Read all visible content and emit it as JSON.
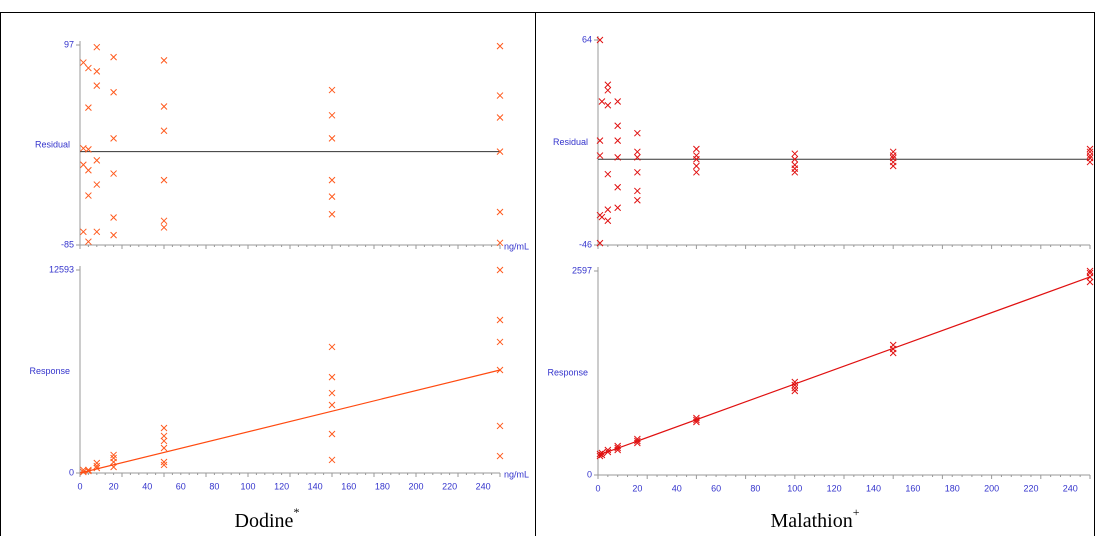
{
  "chart_data": [
    {
      "type": "scatter",
      "ylabel": "Residual",
      "xlabel": "ng/mL",
      "xlim": [
        0,
        250
      ],
      "ylim": [
        -85,
        97
      ],
      "yticks": [
        -85,
        97
      ],
      "hline": 0,
      "series": [
        {
          "color": "#ff5a1e",
          "style": "marker",
          "x": [
            2,
            2,
            2,
            2,
            5,
            5,
            5,
            5,
            5,
            5,
            10,
            10,
            10,
            10,
            10,
            10,
            20,
            20,
            20,
            20,
            20,
            20,
            50,
            50,
            50,
            50,
            50,
            50,
            150,
            150,
            150,
            150,
            150,
            150,
            250,
            250,
            250,
            250,
            250,
            250
          ],
          "values": [
            81,
            3,
            -12,
            -73,
            76,
            40,
            2,
            -17,
            -40,
            -82,
            95,
            73,
            60,
            -8,
            -30,
            -73,
            86,
            54,
            12,
            -20,
            -60,
            -76,
            83,
            41,
            19,
            -26,
            -63,
            -69,
            56,
            33,
            12,
            -26,
            -41,
            -57,
            96,
            51,
            31,
            0,
            -55,
            -83
          ]
        }
      ]
    },
    {
      "type": "scatter",
      "ylabel": "Response",
      "xlabel": "ng/mL",
      "xlim": [
        0,
        250
      ],
      "ylim": [
        0,
        12593
      ],
      "yticks": [
        0,
        12593
      ],
      "xticks": [
        0,
        20,
        40,
        60,
        80,
        100,
        120,
        140,
        160,
        180,
        200,
        220,
        240
      ],
      "series": [
        {
          "color": "#ff5a1e",
          "style": "marker",
          "x": [
            2,
            2,
            5,
            5,
            10,
            10,
            10,
            20,
            20,
            20,
            20,
            50,
            50,
            50,
            50,
            50,
            50,
            150,
            150,
            150,
            150,
            150,
            150,
            250,
            250,
            250,
            250,
            250,
            250
          ],
          "values": [
            190,
            60,
            190,
            120,
            620,
            430,
            310,
            1120,
            930,
            680,
            370,
            2790,
            2300,
            1990,
            1550,
            680,
            500,
            7820,
            5950,
            4960,
            4220,
            2420,
            810,
            12593,
            9490,
            8130,
            6390,
            2920,
            1050
          ]
        },
        {
          "color": "#ff4a10",
          "style": "line",
          "x": [
            0,
            250
          ],
          "values": [
            0,
            6390
          ]
        }
      ]
    },
    {
      "type": "scatter",
      "ylabel": "Residual",
      "xlim": [
        0,
        250
      ],
      "ylim": [
        -46,
        64
      ],
      "yticks": [
        -46,
        64
      ],
      "hline": 0,
      "series": [
        {
          "color": "#e01010",
          "style": "marker",
          "x": [
            1,
            1,
            1,
            1,
            1,
            2,
            2,
            5,
            5,
            5,
            5,
            5,
            5,
            10,
            10,
            10,
            10,
            10,
            10,
            20,
            20,
            20,
            20,
            20,
            20,
            50,
            50,
            50,
            50,
            50,
            100,
            100,
            100,
            100,
            100,
            150,
            150,
            150,
            150,
            150,
            250,
            250,
            250,
            250,
            250
          ],
          "values": [
            64,
            10,
            2,
            -30,
            -45,
            31,
            -31,
            40,
            37,
            29,
            -8,
            -27,
            -33,
            31,
            18,
            10,
            1,
            -15,
            -26,
            14,
            4,
            1,
            -7,
            -17,
            -22,
            5.5,
            2,
            0,
            -3.6,
            -7,
            3,
            0,
            -3,
            -5,
            -7,
            4,
            2,
            0.7,
            -1.5,
            -3.6,
            5.5,
            4,
            2,
            0.7,
            -1.5
          ]
        }
      ]
    },
    {
      "type": "scatter",
      "ylabel": "Response",
      "xlim": [
        0,
        250
      ],
      "ylim": [
        0,
        2597
      ],
      "yticks": [
        0,
        2597
      ],
      "xticks": [
        0,
        20,
        40,
        60,
        80,
        100,
        120,
        140,
        160,
        180,
        200,
        220,
        240
      ],
      "series": [
        {
          "color": "#e01010",
          "style": "marker",
          "x": [
            1,
            1,
            2,
            2,
            5,
            5,
            10,
            10,
            10,
            20,
            20,
            20,
            50,
            50,
            50,
            100,
            100,
            100,
            100,
            150,
            150,
            150,
            250,
            250,
            250,
            250
          ],
          "values": [
            267,
            242,
            280,
            255,
            318,
            293,
            369,
            344,
            318,
            458,
            433,
            407,
            726,
            700,
            675,
            1184,
            1146,
            1107,
            1069,
            1655,
            1604,
            1553,
            2597,
            2571,
            2521,
            2457
          ]
        },
        {
          "color": "#e01010",
          "style": "line",
          "x": [
            0,
            250
          ],
          "values": [
            250,
            2521
          ]
        }
      ]
    }
  ],
  "captions": [
    {
      "text": "Dodine",
      "sup": "*"
    },
    {
      "text": "Malathion",
      "sup": "+"
    }
  ]
}
